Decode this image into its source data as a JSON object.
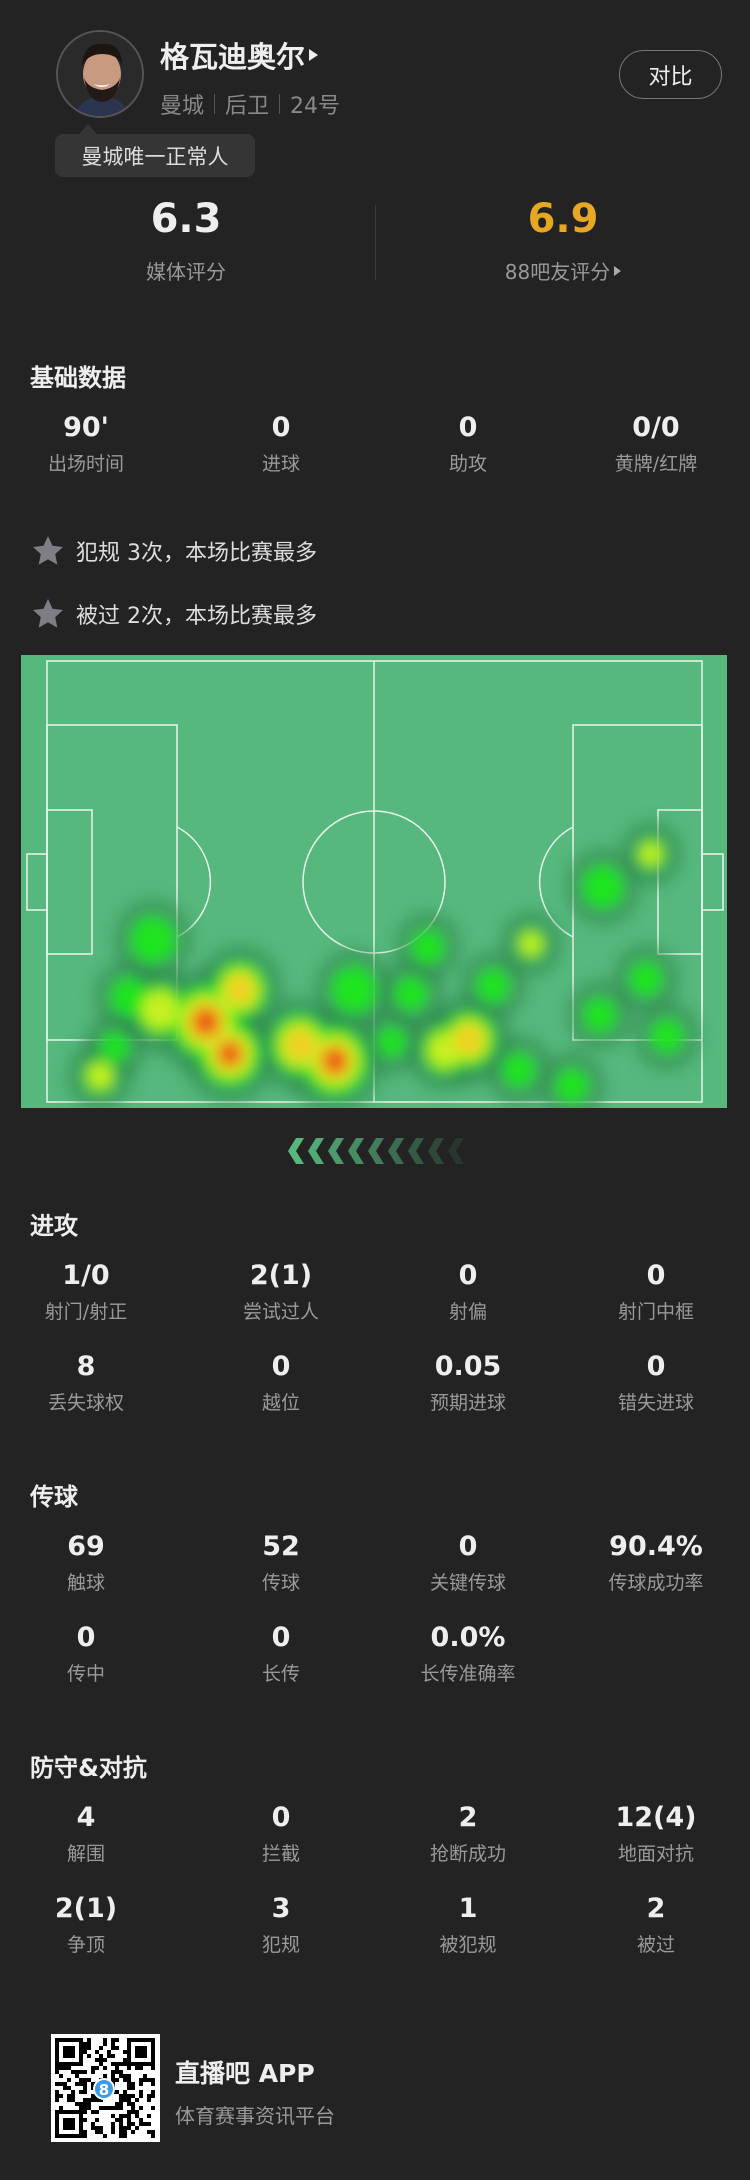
{
  "player": {
    "name": "格瓦迪奥尔",
    "team": "曼城",
    "position": "后卫",
    "number": "24号",
    "tag": "曼城唯一正常人",
    "compare_label": "对比"
  },
  "ratings": {
    "media": {
      "value": "6.3",
      "label": "媒体评分"
    },
    "fans": {
      "value": "6.9",
      "label": "88吧友评分",
      "color": "#e6a823"
    }
  },
  "basic": {
    "title": "基础数据",
    "stats": [
      {
        "value": "90'",
        "label": "出场时间"
      },
      {
        "value": "0",
        "label": "进球"
      },
      {
        "value": "0",
        "label": "助攻"
      },
      {
        "value": "0/0",
        "label": "黄牌/红牌"
      }
    ],
    "highlights": [
      {
        "icon": "star-icon",
        "text": "犯规 3次，本场比赛最多"
      },
      {
        "icon": "star-icon",
        "text": "被过 2次，本场比赛最多"
      }
    ]
  },
  "heatmap": {
    "pitch_color": "#56b87d",
    "direction": "attacking-left"
  },
  "attack": {
    "title": "进攻",
    "stats": [
      {
        "value": "1/0",
        "label": "射门/射正"
      },
      {
        "value": "2(1)",
        "label": "尝试过人"
      },
      {
        "value": "0",
        "label": "射偏"
      },
      {
        "value": "0",
        "label": "射门中框"
      },
      {
        "value": "8",
        "label": "丢失球权"
      },
      {
        "value": "0",
        "label": "越位"
      },
      {
        "value": "0.05",
        "label": "预期进球"
      },
      {
        "value": "0",
        "label": "错失进球"
      }
    ]
  },
  "passing": {
    "title": "传球",
    "stats": [
      {
        "value": "69",
        "label": "触球"
      },
      {
        "value": "52",
        "label": "传球"
      },
      {
        "value": "0",
        "label": "关键传球"
      },
      {
        "value": "90.4%",
        "label": "传球成功率"
      },
      {
        "value": "0",
        "label": "传中"
      },
      {
        "value": "0",
        "label": "长传"
      },
      {
        "value": "0.0%",
        "label": "长传准确率"
      }
    ]
  },
  "defense": {
    "title": "防守&对抗",
    "stats": [
      {
        "value": "4",
        "label": "解围"
      },
      {
        "value": "0",
        "label": "拦截"
      },
      {
        "value": "2",
        "label": "抢断成功"
      },
      {
        "value": "12(4)",
        "label": "地面对抗"
      },
      {
        "value": "2(1)",
        "label": "争顶"
      },
      {
        "value": "3",
        "label": "犯规"
      },
      {
        "value": "1",
        "label": "被犯规"
      },
      {
        "value": "2",
        "label": "被过"
      }
    ]
  },
  "footer": {
    "app_name": "直播吧 APP",
    "tagline": "体育赛事资讯平台",
    "qr_badge": "8"
  }
}
